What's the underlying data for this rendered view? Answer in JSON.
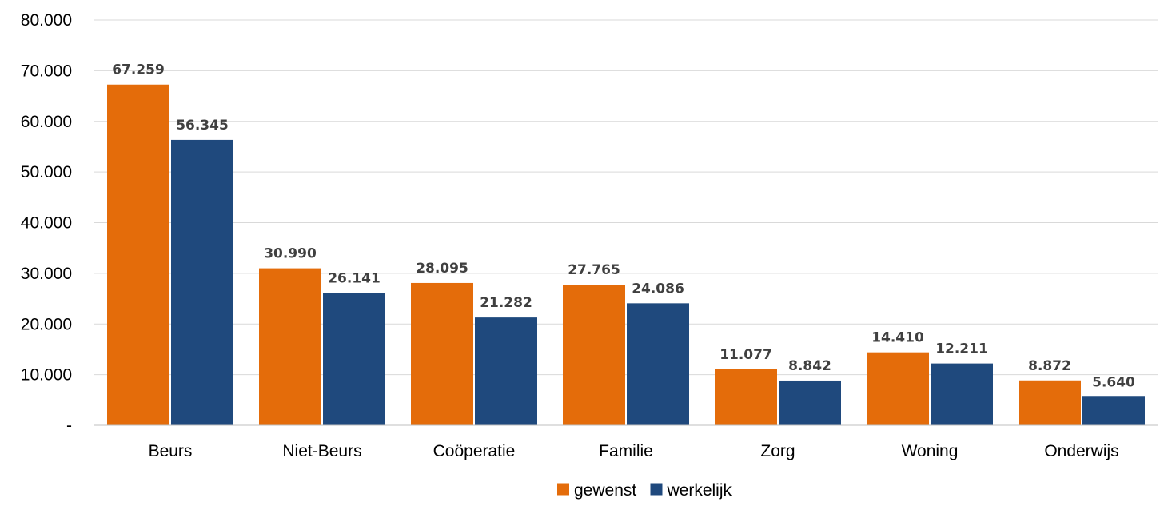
{
  "chart_data": {
    "type": "bar",
    "title": "",
    "xlabel": "",
    "ylabel": "",
    "categories": [
      "Beurs",
      "Niet-Beurs",
      "Coöperatie",
      "Familie",
      "Zorg",
      "Woning",
      "Onderwijs"
    ],
    "series": [
      {
        "name": "gewenst",
        "color": "#e46c0a",
        "values": [
          67259,
          30990,
          28095,
          27765,
          11077,
          14410,
          8872
        ],
        "value_labels": [
          "67.259",
          "30.990",
          "28.095",
          "27.765",
          "11.077",
          "14.410",
          "8.872"
        ]
      },
      {
        "name": "werkelijk",
        "color": "#1f497d",
        "values": [
          56345,
          26141,
          21282,
          24086,
          8842,
          12211,
          5640
        ],
        "value_labels": [
          "56.345",
          "26.141",
          "21.282",
          "24.086",
          "8.842",
          "12.211",
          "5.640"
        ]
      }
    ],
    "ylim": [
      0,
      80000
    ],
    "yticks": [
      0,
      10000,
      20000,
      30000,
      40000,
      50000,
      60000,
      70000,
      80000
    ],
    "ytick_labels": [
      "-",
      "10.000",
      "20.000",
      "30.000",
      "40.000",
      "50.000",
      "60.000",
      "70.000",
      "80.000"
    ],
    "grid": true,
    "legend_position": "bottom-center"
  }
}
